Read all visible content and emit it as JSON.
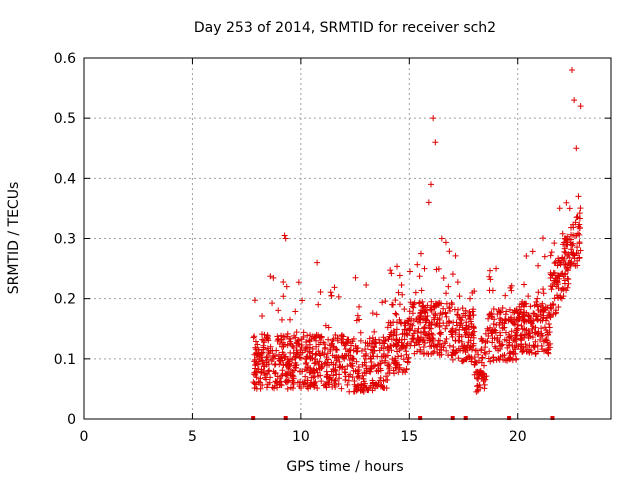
{
  "chart_data": {
    "type": "scatter",
    "title": "Day 253 of 2014, SRMTID for receiver sch2",
    "xlabel": "GPS time / hours",
    "ylabel": "SRMTID / TECUs",
    "xlim": [
      0,
      24.3
    ],
    "ylim": [
      0,
      0.6
    ],
    "x_ticks": [
      0,
      5,
      10,
      15,
      20
    ],
    "y_ticks": [
      0,
      0.1,
      0.2,
      0.3,
      0.4,
      0.5,
      0.6
    ],
    "x_tick_labels": [
      "0",
      "5",
      "10",
      "15",
      "20"
    ],
    "y_tick_labels": [
      "0",
      "0.1",
      "0.2",
      "0.3",
      "0.4",
      "0.5",
      "0.6"
    ],
    "grid": true,
    "marker": "+",
    "color": "#e00000",
    "data_range_hours": [
      7.8,
      22.9
    ],
    "baseline_points_x": [
      7.8,
      9.3,
      15.5,
      17.0,
      17.6,
      19.6,
      21.6
    ],
    "series": [
      {
        "name": "SRMTID",
        "x": [
          7.9,
          8.1,
          8.3,
          8.5,
          8.8,
          9.0,
          9.2,
          9.25,
          9.3,
          9.35,
          9.5,
          9.8,
          10.0,
          10.2,
          10.5,
          10.7,
          10.75,
          10.8,
          11.0,
          11.3,
          11.6,
          12.0,
          12.3,
          12.6,
          13.0,
          13.3,
          13.6,
          14.0,
          14.2,
          14.4,
          14.5,
          14.7,
          15.0,
          15.2,
          15.3,
          15.5,
          15.7,
          15.9,
          16.0,
          16.1,
          16.2,
          16.5,
          16.8,
          17.0,
          17.3,
          17.6,
          17.8,
          18.0,
          18.3,
          18.6,
          18.8,
          19.0,
          19.3,
          19.5,
          19.8,
          20.0,
          20.3,
          20.6,
          20.9,
          21.2,
          21.5,
          21.8,
          22.0,
          22.2,
          22.4,
          22.5,
          22.6,
          22.7,
          22.8,
          22.9
        ],
        "y": [
          0.09,
          0.1,
          0.08,
          0.11,
          0.09,
          0.1,
          0.12,
          0.305,
          0.3,
          0.22,
          0.1,
          0.09,
          0.11,
          0.1,
          0.08,
          0.13,
          0.26,
          0.19,
          0.11,
          0.09,
          0.08,
          0.1,
          0.09,
          0.07,
          0.1,
          0.11,
          0.09,
          0.12,
          0.19,
          0.13,
          0.21,
          0.12,
          0.15,
          0.19,
          0.21,
          0.16,
          0.25,
          0.36,
          0.39,
          0.5,
          0.46,
          0.3,
          0.22,
          0.15,
          0.14,
          0.18,
          0.2,
          0.09,
          0.08,
          0.15,
          0.17,
          0.25,
          0.16,
          0.13,
          0.11,
          0.15,
          0.14,
          0.16,
          0.2,
          0.18,
          0.17,
          0.23,
          0.26,
          0.3,
          0.35,
          0.58,
          0.53,
          0.45,
          0.37,
          0.52
        ]
      }
    ]
  }
}
